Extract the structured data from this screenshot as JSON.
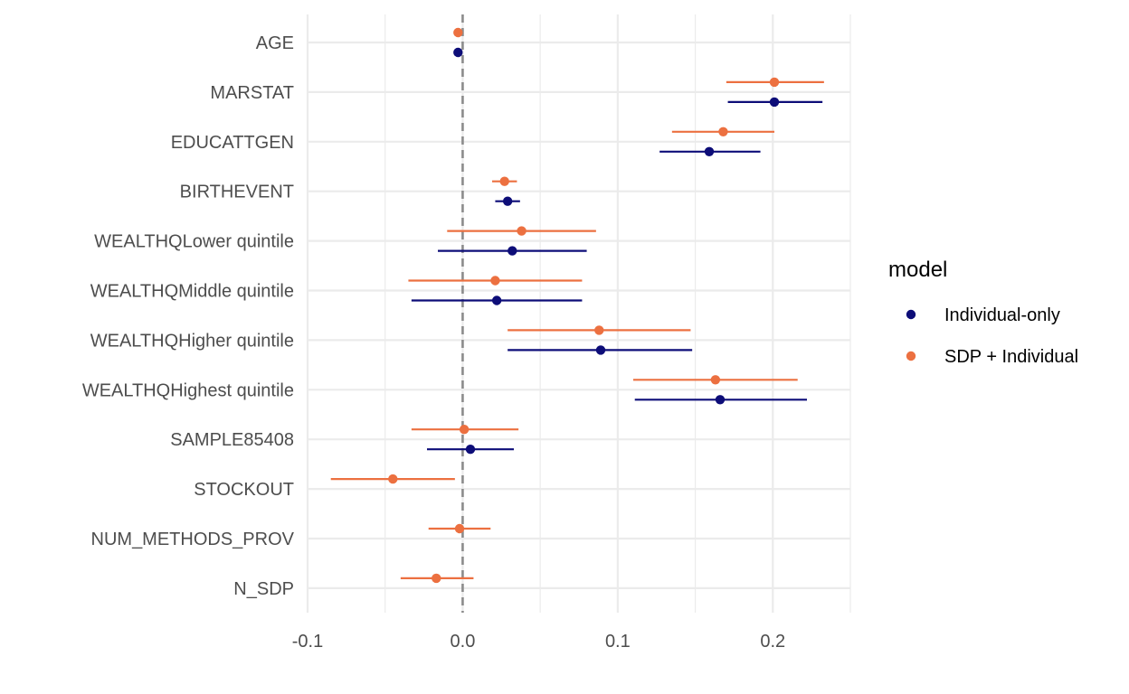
{
  "chart_data": {
    "type": "scatter",
    "subtype": "coefficient-plot-with-intervals",
    "title": "",
    "xlabel": "",
    "ylabel": "",
    "xlim": [
      -0.1,
      0.25
    ],
    "x_ticks": [
      -0.1,
      0.0,
      0.1,
      0.2
    ],
    "x_tick_labels": [
      "-0.1",
      "0.0",
      "0.1",
      "0.2"
    ],
    "reference_line_x": 0,
    "grid": true,
    "legend": {
      "title": "model",
      "placement": "right"
    },
    "categories": [
      "AGE",
      "MARSTAT",
      "EDUCATTGEN",
      "BIRTHEVENT",
      "WEALTHQLower quintile",
      "WEALTHQMiddle quintile",
      "WEALTHQHigher quintile",
      "WEALTHQHighest quintile",
      "SAMPLE85408",
      "STOCKOUT",
      "NUM_METHODS_PROV",
      "N_SDP"
    ],
    "series": [
      {
        "name": "Individual-only",
        "color": "#0d0d78",
        "points": [
          {
            "term": "AGE",
            "estimate": -0.003,
            "low": null,
            "high": null
          },
          {
            "term": "MARSTAT",
            "estimate": 0.201,
            "low": 0.171,
            "high": 0.232
          },
          {
            "term": "EDUCATTGEN",
            "estimate": 0.159,
            "low": 0.127,
            "high": 0.192
          },
          {
            "term": "BIRTHEVENT",
            "estimate": 0.029,
            "low": 0.021,
            "high": 0.037
          },
          {
            "term": "WEALTHQLower quintile",
            "estimate": 0.032,
            "low": -0.016,
            "high": 0.08
          },
          {
            "term": "WEALTHQMiddle quintile",
            "estimate": 0.022,
            "low": -0.033,
            "high": 0.077
          },
          {
            "term": "WEALTHQHigher quintile",
            "estimate": 0.089,
            "low": 0.029,
            "high": 0.148
          },
          {
            "term": "WEALTHQHighest quintile",
            "estimate": 0.166,
            "low": 0.111,
            "high": 0.222
          },
          {
            "term": "SAMPLE85408",
            "estimate": 0.005,
            "low": -0.023,
            "high": 0.033
          }
        ]
      },
      {
        "name": "SDP + Individual",
        "color": "#ec7040",
        "points": [
          {
            "term": "AGE",
            "estimate": -0.003,
            "low": null,
            "high": null
          },
          {
            "term": "MARSTAT",
            "estimate": 0.201,
            "low": 0.17,
            "high": 0.233
          },
          {
            "term": "EDUCATTGEN",
            "estimate": 0.168,
            "low": 0.135,
            "high": 0.201
          },
          {
            "term": "BIRTHEVENT",
            "estimate": 0.027,
            "low": 0.019,
            "high": 0.035
          },
          {
            "term": "WEALTHQLower quintile",
            "estimate": 0.038,
            "low": -0.01,
            "high": 0.086
          },
          {
            "term": "WEALTHQMiddle quintile",
            "estimate": 0.021,
            "low": -0.035,
            "high": 0.077
          },
          {
            "term": "WEALTHQHigher quintile",
            "estimate": 0.088,
            "low": 0.029,
            "high": 0.147
          },
          {
            "term": "WEALTHQHighest quintile",
            "estimate": 0.163,
            "low": 0.11,
            "high": 0.216
          },
          {
            "term": "SAMPLE85408",
            "estimate": 0.001,
            "low": -0.033,
            "high": 0.036
          },
          {
            "term": "STOCKOUT",
            "estimate": -0.045,
            "low": -0.085,
            "high": -0.005
          },
          {
            "term": "NUM_METHODS_PROV",
            "estimate": -0.002,
            "low": -0.022,
            "high": 0.018
          },
          {
            "term": "N_SDP",
            "estimate": -0.017,
            "low": -0.04,
            "high": 0.007
          }
        ]
      }
    ]
  }
}
